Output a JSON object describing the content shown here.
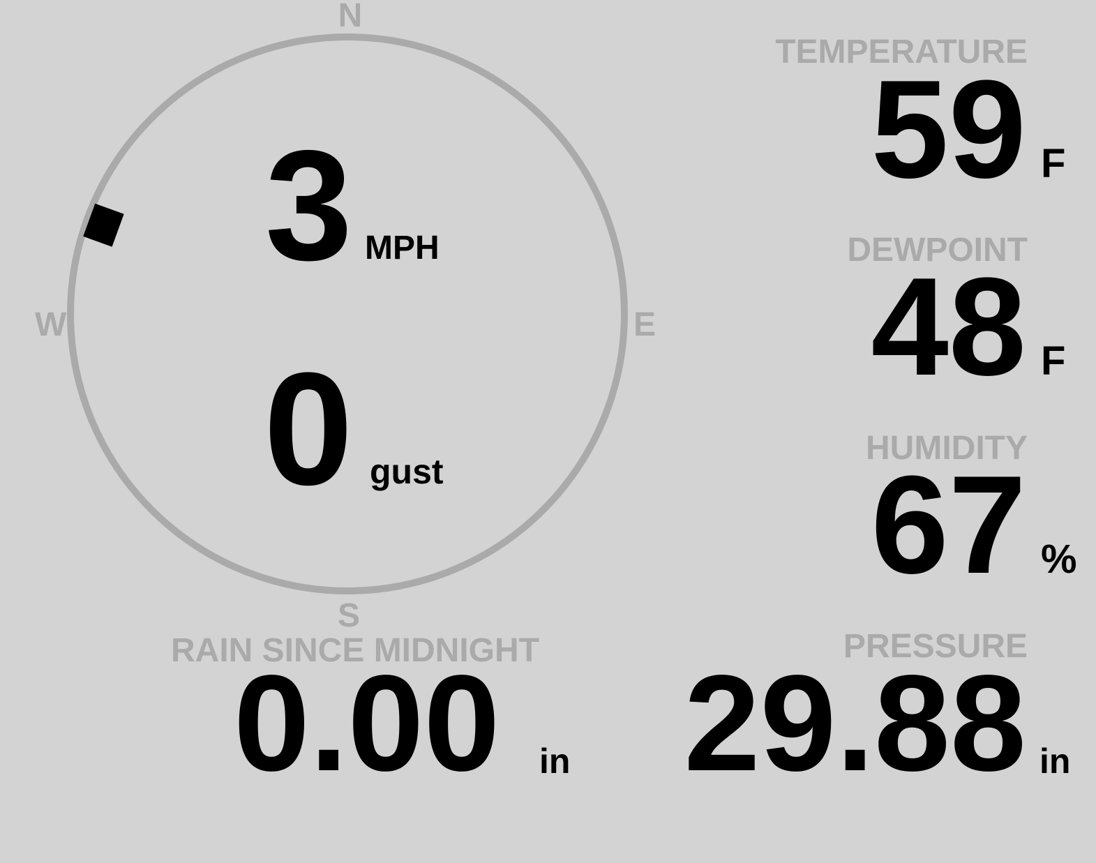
{
  "colors": {
    "background": "#d3d3d3",
    "label": "#aaaaaa",
    "value": "#000000",
    "ring": "#aaaaaa"
  },
  "compass": {
    "n": "N",
    "s": "S",
    "e": "E",
    "w": "W",
    "direction_degrees": 290
  },
  "wind": {
    "speed": "3",
    "speed_unit": "MPH",
    "gust": "0",
    "gust_unit": "gust"
  },
  "temperature": {
    "label": "TEMPERATURE",
    "value": "59",
    "unit": "F"
  },
  "dewpoint": {
    "label": "DEWPOINT",
    "value": "48",
    "unit": "F"
  },
  "humidity": {
    "label": "HUMIDITY",
    "value": "67",
    "unit": "%"
  },
  "rain": {
    "label": "RAIN SINCE MIDNIGHT",
    "value": "0.00",
    "unit": "in"
  },
  "pressure": {
    "label": "PRESSURE",
    "value": "29.88",
    "unit": "in"
  }
}
